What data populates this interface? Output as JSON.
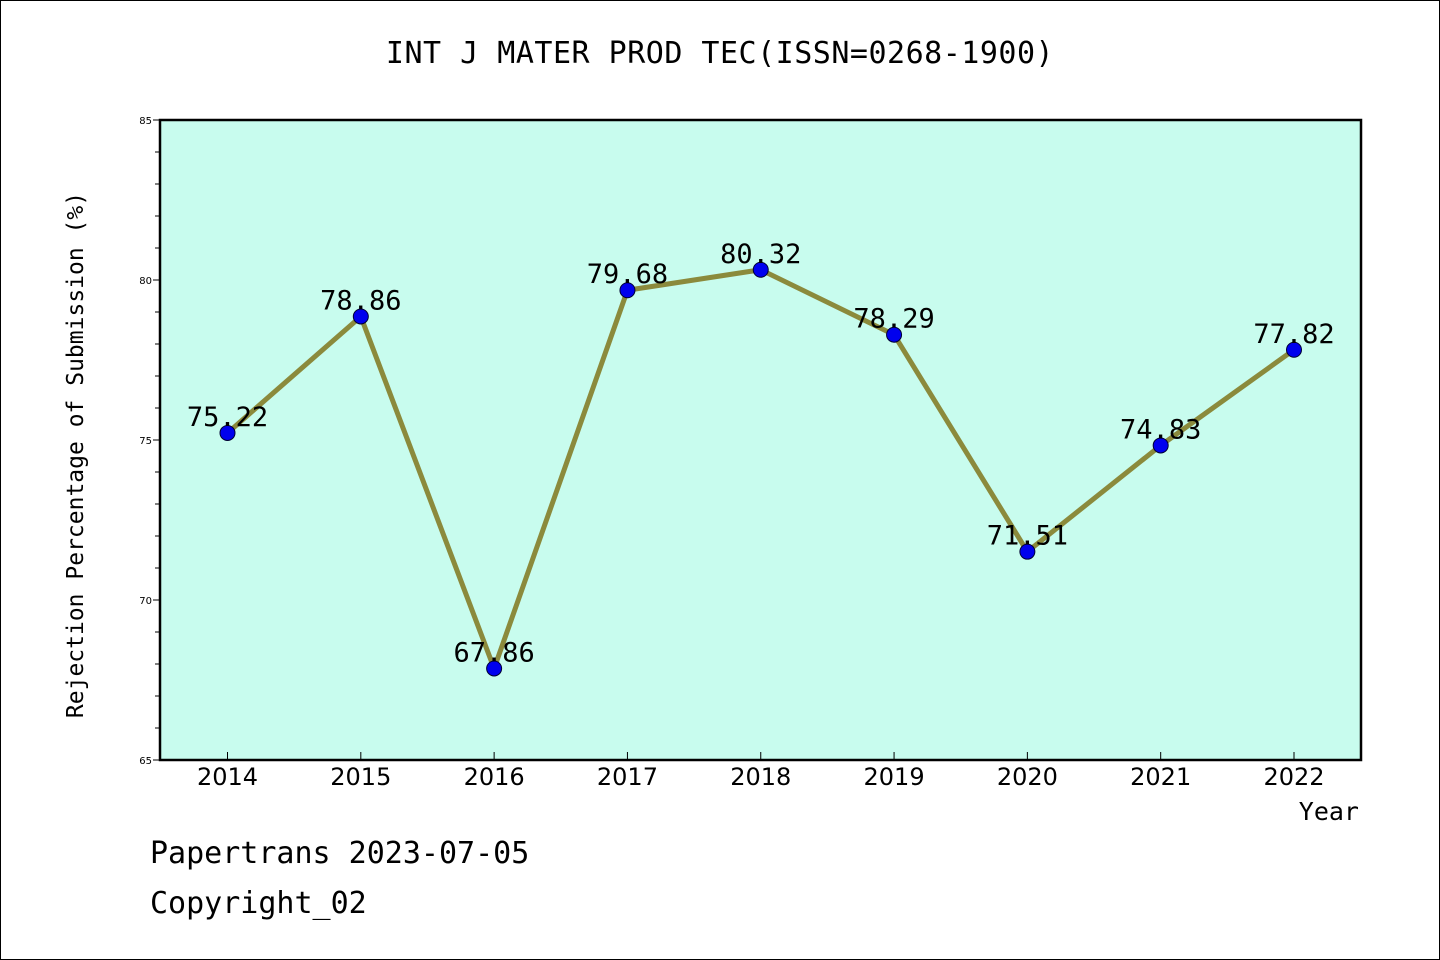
{
  "chart_data": {
    "type": "line",
    "title": "INT J MATER PROD TEC(ISSN=0268-1900)",
    "xlabel": "Year",
    "ylabel": "Rejection Percentage of Submission (%)",
    "categories": [
      "2014",
      "2015",
      "2016",
      "2017",
      "2018",
      "2019",
      "2020",
      "2021",
      "2022"
    ],
    "values": [
      75.22,
      78.86,
      67.86,
      79.68,
      80.32,
      78.29,
      71.51,
      74.83,
      77.82
    ],
    "data_labels": [
      "75.22",
      "78.86",
      "67.86",
      "79.68",
      "80.32",
      "78.29",
      "71.51",
      "74.83",
      "77.82"
    ],
    "ylim": [
      65,
      85
    ],
    "yticks": [
      65,
      70,
      75,
      80,
      85
    ],
    "grid": false,
    "colors": {
      "plot_background": "#c8fcee",
      "line": "#8b8a3c",
      "marker": "#0000ee"
    }
  },
  "footer": {
    "line1": "Papertrans 2023-07-05",
    "line2": "Copyright_02"
  }
}
